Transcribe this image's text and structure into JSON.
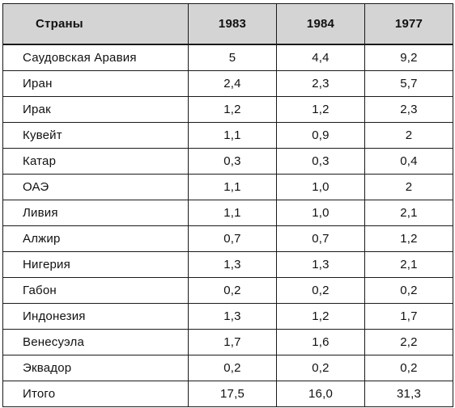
{
  "table": {
    "headers": [
      "Страны",
      "1983",
      "1984",
      "1977"
    ],
    "rows": [
      [
        "Саудовская Аравия",
        "5",
        "4,4",
        "9,2"
      ],
      [
        "Иран",
        "2,4",
        "2,3",
        "5,7"
      ],
      [
        "Ирак",
        "1,2",
        "1,2",
        "2,3"
      ],
      [
        "Кувейт",
        "1,1",
        "0,9",
        "2"
      ],
      [
        "Катар",
        "0,3",
        "0,3",
        "0,4"
      ],
      [
        "ОАЭ",
        "1,1",
        "1,0",
        "2"
      ],
      [
        "Ливия",
        "1,1",
        "1,0",
        "2,1"
      ],
      [
        "Алжир",
        "0,7",
        "0,7",
        "1,2"
      ],
      [
        "Нигерия",
        "1,3",
        "1,3",
        "2,1"
      ],
      [
        "Габон",
        "0,2",
        "0,2",
        "0,2"
      ],
      [
        "Индонезия",
        "1,3",
        "1,2",
        "1,7"
      ],
      [
        "Венесуэла",
        "1,7",
        "1,6",
        "2,2"
      ],
      [
        "Эквадор",
        "0,2",
        "0,2",
        "0,2"
      ],
      [
        "Итого",
        "17,5",
        "16,0",
        "31,3"
      ]
    ]
  }
}
